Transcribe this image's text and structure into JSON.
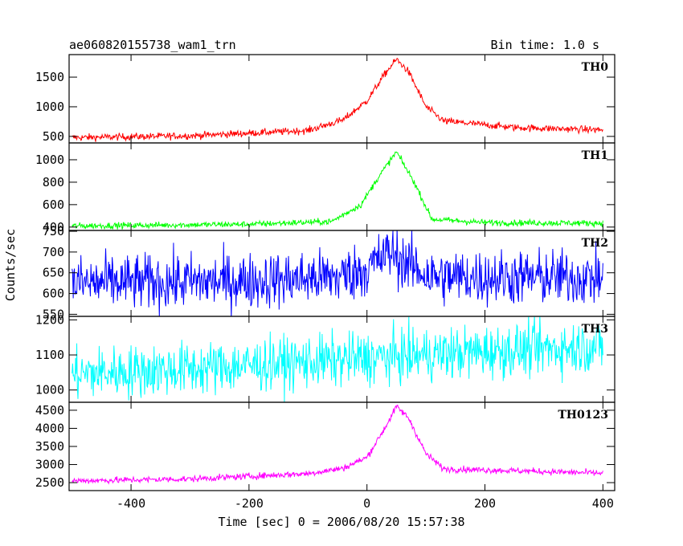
{
  "chart_data": {
    "type": "line",
    "title": "ae060820155738_wam1_trn",
    "bin_time": "Bin time: 1.0 s",
    "xlabel": "Time [sec] 0 = 2006/08/20 15:57:38",
    "ylabel": "Counts/sec",
    "xlim": [
      -505,
      420
    ],
    "x_ticks": [
      -400,
      -200,
      0,
      200,
      400
    ],
    "grid": false,
    "series": [
      {
        "name": "TH0",
        "color": "#ff0000",
        "ylim": [
          390,
          1880
        ],
        "y_ticks": [
          500,
          1000,
          1500
        ],
        "shape": [
          [
            -500,
            480
          ],
          [
            -300,
            510
          ],
          [
            -100,
            600
          ],
          [
            -40,
            780
          ],
          [
            0,
            1100
          ],
          [
            30,
            1550
          ],
          [
            50,
            1800
          ],
          [
            70,
            1600
          ],
          [
            100,
            1000
          ],
          [
            130,
            760
          ],
          [
            250,
            650
          ],
          [
            400,
            610
          ]
        ],
        "noise": 30
      },
      {
        "name": "TH1",
        "color": "#00ff00",
        "ylim": [
          370,
          1150
        ],
        "y_ticks": [
          400,
          600,
          800,
          1000
        ],
        "shape": [
          [
            -500,
            410
          ],
          [
            -200,
            425
          ],
          [
            -60,
            450
          ],
          [
            -10,
            600
          ],
          [
            20,
            850
          ],
          [
            50,
            1070
          ],
          [
            80,
            800
          ],
          [
            110,
            470
          ],
          [
            200,
            440
          ],
          [
            400,
            435
          ]
        ],
        "noise": 14
      },
      {
        "name": "TH2",
        "color": "#0000ff",
        "ylim": [
          545,
          752
        ],
        "y_ticks": [
          550,
          600,
          650,
          700,
          750
        ],
        "shape": [
          [
            -500,
            625
          ],
          [
            -200,
            630
          ],
          [
            -50,
            640
          ],
          [
            0,
            660
          ],
          [
            40,
            700
          ],
          [
            70,
            670
          ],
          [
            110,
            640
          ],
          [
            400,
            638
          ]
        ],
        "noise": 34
      },
      {
        "name": "TH3",
        "color": "#00ffff",
        "ylim": [
          965,
          1210
        ],
        "y_ticks": [
          1000,
          1100,
          1200
        ],
        "shape": [
          [
            -500,
            1045
          ],
          [
            -250,
            1065
          ],
          [
            0,
            1090
          ],
          [
            200,
            1110
          ],
          [
            400,
            1125
          ]
        ],
        "noise": 38
      },
      {
        "name": "TH0123",
        "color": "#ff00ff",
        "ylim": [
          2280,
          4720
        ],
        "y_ticks": [
          2500,
          3000,
          3500,
          4000,
          4500
        ],
        "shape": [
          [
            -500,
            2550
          ],
          [
            -300,
            2600
          ],
          [
            -100,
            2750
          ],
          [
            -40,
            2900
          ],
          [
            0,
            3200
          ],
          [
            30,
            4000
          ],
          [
            50,
            4600
          ],
          [
            70,
            4300
          ],
          [
            100,
            3300
          ],
          [
            130,
            2880
          ],
          [
            250,
            2830
          ],
          [
            400,
            2760
          ]
        ],
        "noise": 45
      }
    ]
  }
}
